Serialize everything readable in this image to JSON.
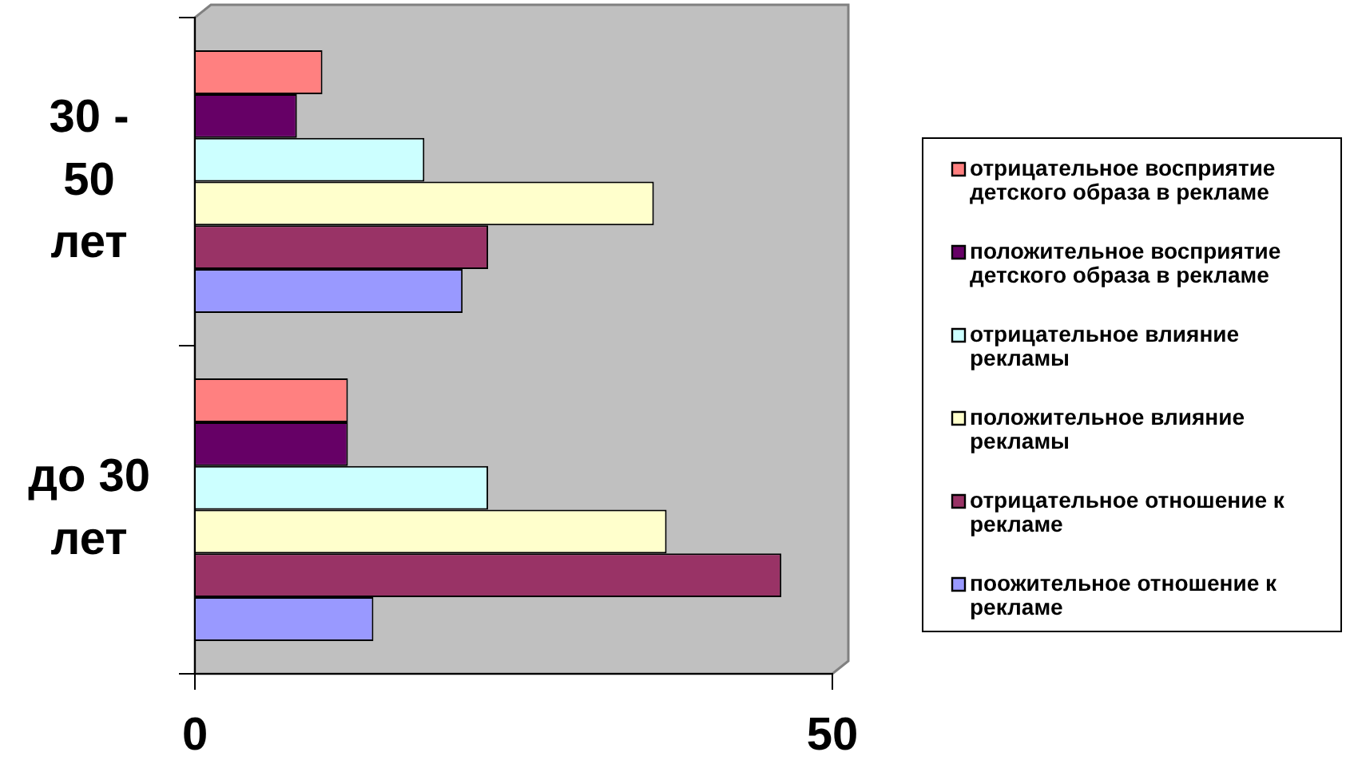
{
  "chart_data": {
    "type": "bar",
    "orientation": "horizontal",
    "categories": [
      "30 - 50 лет",
      "до 30 лет"
    ],
    "series": [
      {
        "name": "отрицательное восприятие детского образа в рекламе",
        "color": "#ff8080",
        "values": [
          10,
          12
        ]
      },
      {
        "name": "положительное восприятие детского образа в рекламе",
        "color": "#660066",
        "values": [
          8,
          12
        ]
      },
      {
        "name": "отрицательное влияние рекламы",
        "color": "#ccffff",
        "values": [
          18,
          23
        ]
      },
      {
        "name": "положительное влияние рекламы",
        "color": "#ffffcc",
        "values": [
          36,
          37
        ]
      },
      {
        "name": "отрицательное отношение к рекламе",
        "color": "#993366",
        "values": [
          23,
          46
        ]
      },
      {
        "name": "поожительное отношение к рекламе",
        "color": "#9999ff",
        "values": [
          21,
          14
        ]
      }
    ],
    "xlim": [
      0,
      50
    ],
    "xticks": [
      0,
      50
    ],
    "grid": false,
    "legend": "right"
  }
}
